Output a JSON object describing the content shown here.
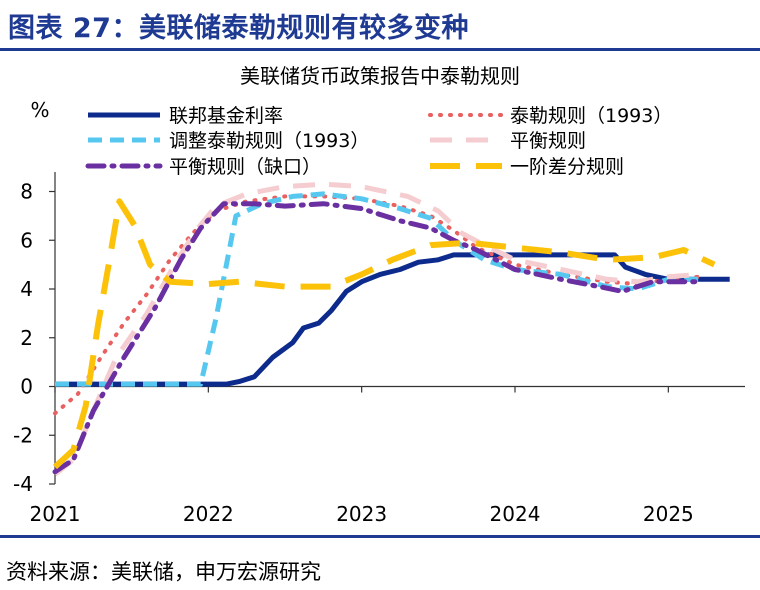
{
  "figure_title": "图表 27：美联储泰勒规则有较多变种",
  "source": "资料来源：美联储，申万宏源研究",
  "chart_data": {
    "type": "line",
    "title": "美联储货币政策报告中泰勒规则",
    "ylabel": "%",
    "xlabel": "",
    "x_ticks": [
      "2021",
      "2022",
      "2023",
      "2024",
      "2025"
    ],
    "y_ticks": [
      "8",
      "6",
      "4",
      "2",
      "0",
      "-2",
      "-4"
    ],
    "xlim": [
      2021.0,
      2025.5
    ],
    "ylim": [
      -4,
      8.8
    ],
    "legend_position": "top",
    "grid": false,
    "series": [
      {
        "name": "联邦基金利率",
        "color": "#0d2b8c",
        "dash": "solid",
        "width": 5,
        "points": [
          [
            2021.0,
            0.1
          ],
          [
            2021.5,
            0.1
          ],
          [
            2022.0,
            0.1
          ],
          [
            2022.12,
            0.1
          ],
          [
            2022.2,
            0.2
          ],
          [
            2022.3,
            0.4
          ],
          [
            2022.42,
            1.2
          ],
          [
            2022.55,
            1.8
          ],
          [
            2022.62,
            2.4
          ],
          [
            2022.72,
            2.6
          ],
          [
            2022.8,
            3.1
          ],
          [
            2022.9,
            3.9
          ],
          [
            2023.0,
            4.3
          ],
          [
            2023.12,
            4.6
          ],
          [
            2023.25,
            4.8
          ],
          [
            2023.37,
            5.1
          ],
          [
            2023.5,
            5.2
          ],
          [
            2023.6,
            5.4
          ],
          [
            2023.75,
            5.4
          ],
          [
            2024.0,
            5.4
          ],
          [
            2024.3,
            5.4
          ],
          [
            2024.65,
            5.4
          ],
          [
            2024.72,
            4.9
          ],
          [
            2024.85,
            4.6
          ],
          [
            2025.0,
            4.4
          ],
          [
            2025.2,
            4.4
          ],
          [
            2025.4,
            4.4
          ]
        ]
      },
      {
        "name": "泰勒规则（1993）",
        "color": "#e86060",
        "dash": "dot",
        "width": 4,
        "points": [
          [
            2021.0,
            -1.1
          ],
          [
            2021.15,
            -0.3
          ],
          [
            2021.3,
            1.2
          ],
          [
            2021.45,
            2.6
          ],
          [
            2021.6,
            3.8
          ],
          [
            2021.75,
            5.2
          ],
          [
            2021.9,
            6.3
          ],
          [
            2022.05,
            7.2
          ],
          [
            2022.25,
            7.6
          ],
          [
            2022.5,
            7.8
          ],
          [
            2022.75,
            7.8
          ],
          [
            2023.0,
            7.7
          ],
          [
            2023.25,
            7.4
          ],
          [
            2023.45,
            7.0
          ],
          [
            2023.6,
            6.4
          ],
          [
            2023.75,
            5.7
          ],
          [
            2024.0,
            5.0
          ],
          [
            2024.3,
            4.6
          ],
          [
            2024.6,
            4.3
          ],
          [
            2024.8,
            4.2
          ],
          [
            2025.0,
            4.4
          ],
          [
            2025.2,
            4.5
          ]
        ]
      },
      {
        "name": "调整泰勒规则（1993）",
        "color": "#56c8f0",
        "dash": "dash",
        "width": 5,
        "points": [
          [
            2021.0,
            0.1
          ],
          [
            2021.5,
            0.1
          ],
          [
            2021.95,
            0.1
          ],
          [
            2022.05,
            2.8
          ],
          [
            2022.18,
            7.0
          ],
          [
            2022.35,
            7.5
          ],
          [
            2022.55,
            7.8
          ],
          [
            2022.75,
            7.9
          ],
          [
            2023.0,
            7.7
          ],
          [
            2023.25,
            7.3
          ],
          [
            2023.45,
            6.9
          ],
          [
            2023.6,
            6.0
          ],
          [
            2023.8,
            5.2
          ],
          [
            2024.0,
            4.8
          ],
          [
            2024.3,
            4.6
          ],
          [
            2024.6,
            4.1
          ],
          [
            2024.8,
            4.0
          ],
          [
            2025.0,
            4.4
          ],
          [
            2025.2,
            4.4
          ]
        ]
      },
      {
        "name": "平衡规则",
        "color": "#f5cdd0",
        "dash": "longdash",
        "width": 5,
        "points": [
          [
            2021.0,
            -3.6
          ],
          [
            2021.12,
            -3.0
          ],
          [
            2021.25,
            -1.0
          ],
          [
            2021.4,
            1.2
          ],
          [
            2021.6,
            3.0
          ],
          [
            2021.78,
            5.0
          ],
          [
            2021.92,
            6.4
          ],
          [
            2022.05,
            7.4
          ],
          [
            2022.25,
            7.9
          ],
          [
            2022.5,
            8.2
          ],
          [
            2022.75,
            8.3
          ],
          [
            2023.0,
            8.2
          ],
          [
            2023.3,
            7.8
          ],
          [
            2023.5,
            7.2
          ],
          [
            2023.65,
            6.3
          ],
          [
            2023.8,
            5.8
          ],
          [
            2024.0,
            5.2
          ],
          [
            2024.3,
            4.8
          ],
          [
            2024.6,
            4.4
          ],
          [
            2024.8,
            4.3
          ],
          [
            2025.0,
            4.5
          ],
          [
            2025.2,
            4.6
          ]
        ]
      },
      {
        "name": "平衡规则（缺口）",
        "color": "#6a2fa0",
        "dash": "dashdot",
        "width": 5,
        "points": [
          [
            2021.0,
            -3.5
          ],
          [
            2021.12,
            -3.0
          ],
          [
            2021.25,
            -1.0
          ],
          [
            2021.45,
            1.2
          ],
          [
            2021.65,
            3.2
          ],
          [
            2021.82,
            5.2
          ],
          [
            2021.95,
            6.5
          ],
          [
            2022.1,
            7.5
          ],
          [
            2022.3,
            7.5
          ],
          [
            2022.5,
            7.4
          ],
          [
            2022.75,
            7.5
          ],
          [
            2023.0,
            7.3
          ],
          [
            2023.25,
            6.8
          ],
          [
            2023.45,
            6.5
          ],
          [
            2023.6,
            6.0
          ],
          [
            2023.75,
            5.6
          ],
          [
            2024.0,
            4.8
          ],
          [
            2024.3,
            4.4
          ],
          [
            2024.55,
            4.1
          ],
          [
            2024.7,
            3.9
          ],
          [
            2024.9,
            4.3
          ],
          [
            2025.1,
            4.3
          ],
          [
            2025.2,
            4.3
          ]
        ]
      },
      {
        "name": "一阶差分规则",
        "color": "#fcc20a",
        "dash": "longdash2",
        "width": 6,
        "points": [
          [
            2021.0,
            -3.3
          ],
          [
            2021.12,
            -2.6
          ],
          [
            2021.2,
            -0.8
          ],
          [
            2021.28,
            2.5
          ],
          [
            2021.35,
            5.0
          ],
          [
            2021.42,
            7.6
          ],
          [
            2021.52,
            6.6
          ],
          [
            2021.62,
            5.0
          ],
          [
            2021.75,
            4.3
          ],
          [
            2022.0,
            4.2
          ],
          [
            2022.2,
            4.3
          ],
          [
            2022.5,
            4.1
          ],
          [
            2022.8,
            4.1
          ],
          [
            2023.0,
            4.6
          ],
          [
            2023.2,
            5.2
          ],
          [
            2023.45,
            5.8
          ],
          [
            2023.7,
            5.9
          ],
          [
            2024.0,
            5.7
          ],
          [
            2024.3,
            5.5
          ],
          [
            2024.6,
            5.2
          ],
          [
            2024.9,
            5.3
          ],
          [
            2025.1,
            5.6
          ],
          [
            2025.3,
            5.0
          ]
        ]
      }
    ]
  }
}
